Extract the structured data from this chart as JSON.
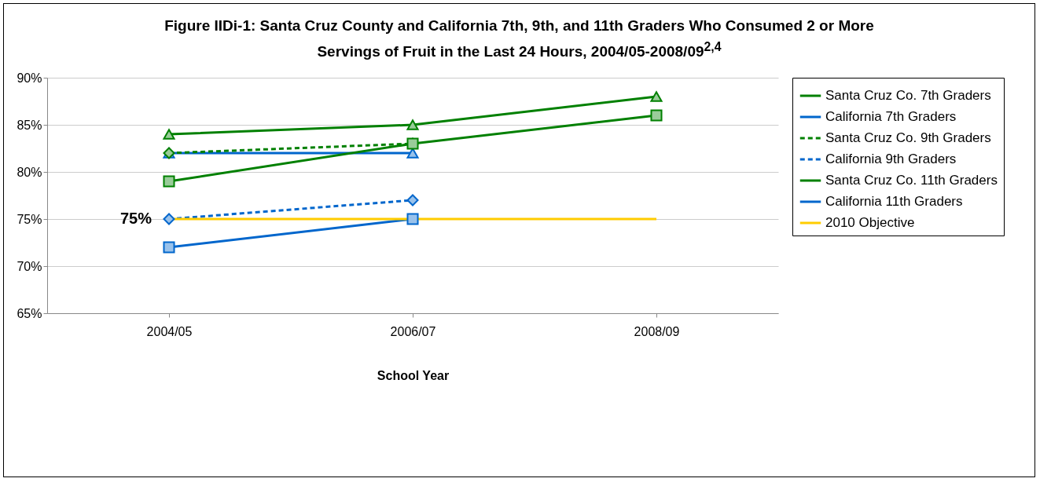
{
  "chart_data": {
    "type": "line",
    "title": "Figure IIDi-1: Santa Cruz County and California 7th, 9th, and 11th Graders Who Consumed 2 or More Servings of Fruit in the Last 24 Hours, 2004/05-2008/09$^{2,4}$",
    "xlabel": "School Year",
    "categories": [
      "2004/05",
      "2006/07",
      "2008/09"
    ],
    "series": [
      {
        "name": "Santa Cruz Co. 7th Graders",
        "color": "#008000",
        "marker": "triangle",
        "line_style": "solid",
        "values": [
          84,
          85,
          88
        ]
      },
      {
        "name": "California 7th Graders",
        "color": "#0066cc",
        "marker": "triangle",
        "line_style": "solid",
        "values": [
          82,
          82,
          null
        ]
      },
      {
        "name": "Santa Cruz Co. 9th Graders",
        "color": "#008000",
        "marker": "diamond",
        "line_style": "dashed",
        "values": [
          82,
          83,
          null
        ]
      },
      {
        "name": "California 9th Graders",
        "color": "#0066cc",
        "marker": "diamond",
        "line_style": "dashed",
        "values": [
          75,
          77,
          null
        ]
      },
      {
        "name": "Santa Cruz Co. 11th Graders",
        "color": "#008000",
        "marker": "square",
        "line_style": "solid",
        "values": [
          79,
          83,
          86
        ]
      },
      {
        "name": "California 11th Graders",
        "color": "#0066cc",
        "marker": "square",
        "line_style": "solid",
        "values": [
          72,
          75,
          null
        ]
      },
      {
        "name": "2010 Objective",
        "color": "#ffcc00",
        "marker": "none",
        "line_style": "solid",
        "values": [
          75,
          75,
          75
        ]
      }
    ],
    "ylim": [
      65,
      90
    ],
    "yticks": [
      {
        "value": 65,
        "label": "65%"
      },
      {
        "value": 70,
        "label": "70%"
      },
      {
        "value": 75,
        "label": "75%"
      },
      {
        "value": 80,
        "label": "80%"
      },
      {
        "value": 85,
        "label": "85%"
      },
      {
        "value": 90,
        "label": "90%"
      }
    ],
    "grid": "y",
    "legend": "right",
    "annotations": [
      {
        "text": "75%",
        "x": "2004/05",
        "y": 75
      }
    ]
  }
}
